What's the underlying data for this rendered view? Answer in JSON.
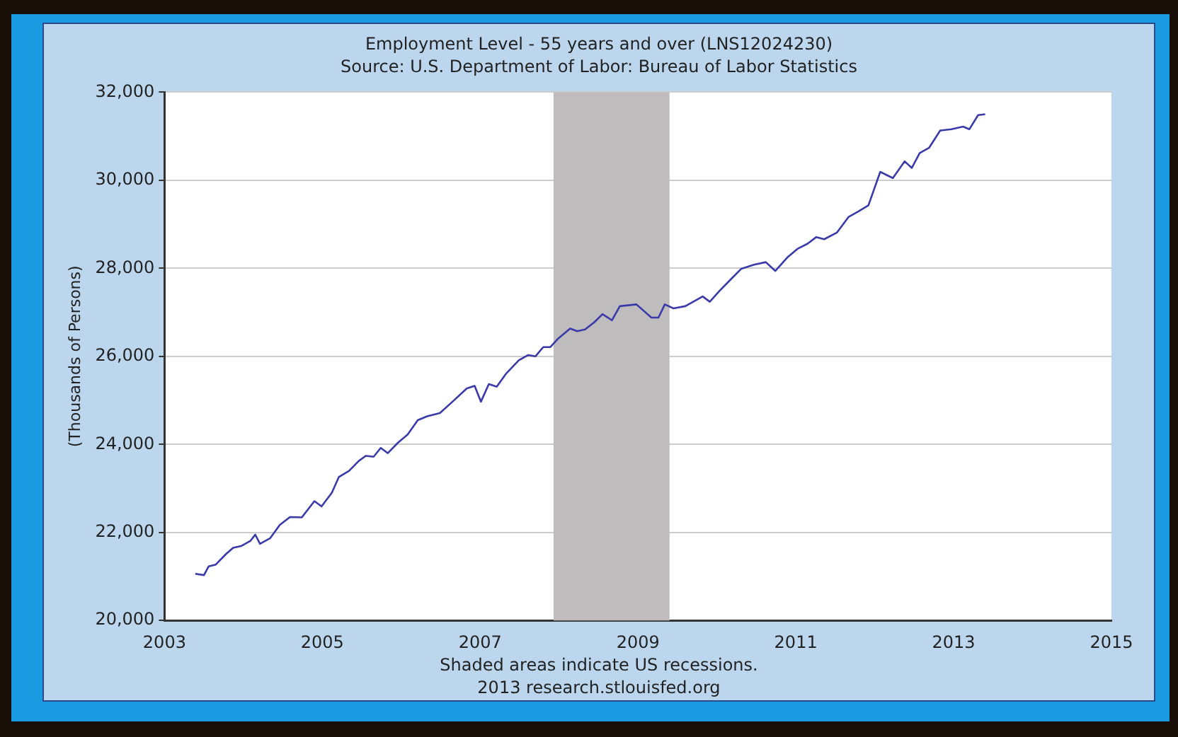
{
  "chart_data": {
    "type": "line",
    "title": "Employment Level - 55 years and over (LNS12024230)",
    "subtitle": "Source: U.S. Department of Labor: Bureau of Labor Statistics",
    "ylabel": "(Thousands of Persons)",
    "x": [
      2003.39,
      2003.5,
      2003.56,
      2003.65,
      2003.78,
      2003.87,
      2003.97,
      2004.09,
      2004.15,
      2004.21,
      2004.34,
      2004.46,
      2004.59,
      2004.74,
      2004.9,
      2004.99,
      2005.12,
      2005.21,
      2005.34,
      2005.46,
      2005.55,
      2005.65,
      2005.74,
      2005.83,
      2005.96,
      2006.08,
      2006.21,
      2006.33,
      2006.49,
      2006.65,
      2006.83,
      2006.93,
      2007.01,
      2007.11,
      2007.21,
      2007.33,
      2007.49,
      2007.61,
      2007.7,
      2007.8,
      2007.89,
      2007.98,
      2008.14,
      2008.23,
      2008.33,
      2008.45,
      2008.55,
      2008.67,
      2008.77,
      2008.98,
      2009.17,
      2009.26,
      2009.34,
      2009.45,
      2009.6,
      2009.82,
      2009.91,
      2010.03,
      2010.16,
      2010.31,
      2010.47,
      2010.62,
      2010.74,
      2010.9,
      2011.02,
      2011.15,
      2011.26,
      2011.36,
      2011.52,
      2011.67,
      2011.79,
      2011.92,
      2012.07,
      2012.23,
      2012.38,
      2012.47,
      2012.57,
      2012.69,
      2012.83,
      2012.97,
      2013.12,
      2013.2,
      2013.31,
      2013.4
    ],
    "series": [
      {
        "color": "#3a3aa8",
        "values": [
          21060,
          21030,
          21230,
          21270,
          21510,
          21650,
          21690,
          21810,
          21950,
          21740,
          21870,
          22170,
          22350,
          22340,
          22710,
          22590,
          22900,
          23260,
          23400,
          23620,
          23740,
          23720,
          23920,
          23800,
          24040,
          24220,
          24550,
          24640,
          24710,
          24970,
          25270,
          25330,
          24970,
          25370,
          25310,
          25610,
          25910,
          26030,
          26000,
          26210,
          26210,
          26390,
          26630,
          26570,
          26610,
          26780,
          26960,
          26820,
          27140,
          27180,
          26880,
          26880,
          27180,
          27090,
          27140,
          27360,
          27240,
          27480,
          27720,
          27990,
          28080,
          28140,
          27940,
          28260,
          28440,
          28560,
          28710,
          28660,
          28810,
          29170,
          29290,
          29430,
          30190,
          30050,
          30430,
          30280,
          30620,
          30740,
          31130,
          31160,
          31220,
          31160,
          31480,
          31500
        ]
      }
    ],
    "xlim": [
      2003,
      2015
    ],
    "xticks": [
      2003,
      2005,
      2007,
      2009,
      2011,
      2013,
      2015
    ],
    "ylim": [
      20000,
      32000
    ],
    "yticks": [
      {
        "value": 20000,
        "label": "20,000"
      },
      {
        "value": 22000,
        "label": "22,000"
      },
      {
        "value": 24000,
        "label": "24,000"
      },
      {
        "value": 26000,
        "label": "26,000"
      },
      {
        "value": 28000,
        "label": "28,000"
      },
      {
        "value": 30000,
        "label": "30,000"
      },
      {
        "value": 32000,
        "label": "32,000"
      }
    ],
    "bands": [
      {
        "axis": "x",
        "from": 2007.93,
        "to": 2009.4,
        "color": "#bebcbc"
      }
    ],
    "annotations": [
      "Shaded areas indicate US recessions.",
      "2013 research.stlouisfed.org"
    ],
    "grid": "y",
    "legend": false,
    "marker": "none",
    "line_style": "solid"
  }
}
